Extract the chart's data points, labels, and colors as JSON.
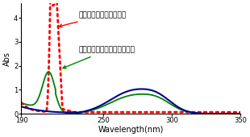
{
  "title": "",
  "xlabel": "Wavelength(nm)",
  "ylabel": "Abs",
  "xlim": [
    190,
    350
  ],
  "ylim": [
    0,
    4.6
  ],
  "yticks": [
    0,
    1,
    2,
    3,
    4
  ],
  "xticks": [
    190,
    250,
    300,
    350
  ],
  "annotation1": "溶媒の吸収スペクトル！",
  "annotation2": "これは試料の吸収ではない！",
  "red_color": "#ff0000",
  "green_color": "#008000",
  "blue_color": "#000090",
  "figsize": [
    3.1,
    1.7
  ],
  "dpi": 100
}
